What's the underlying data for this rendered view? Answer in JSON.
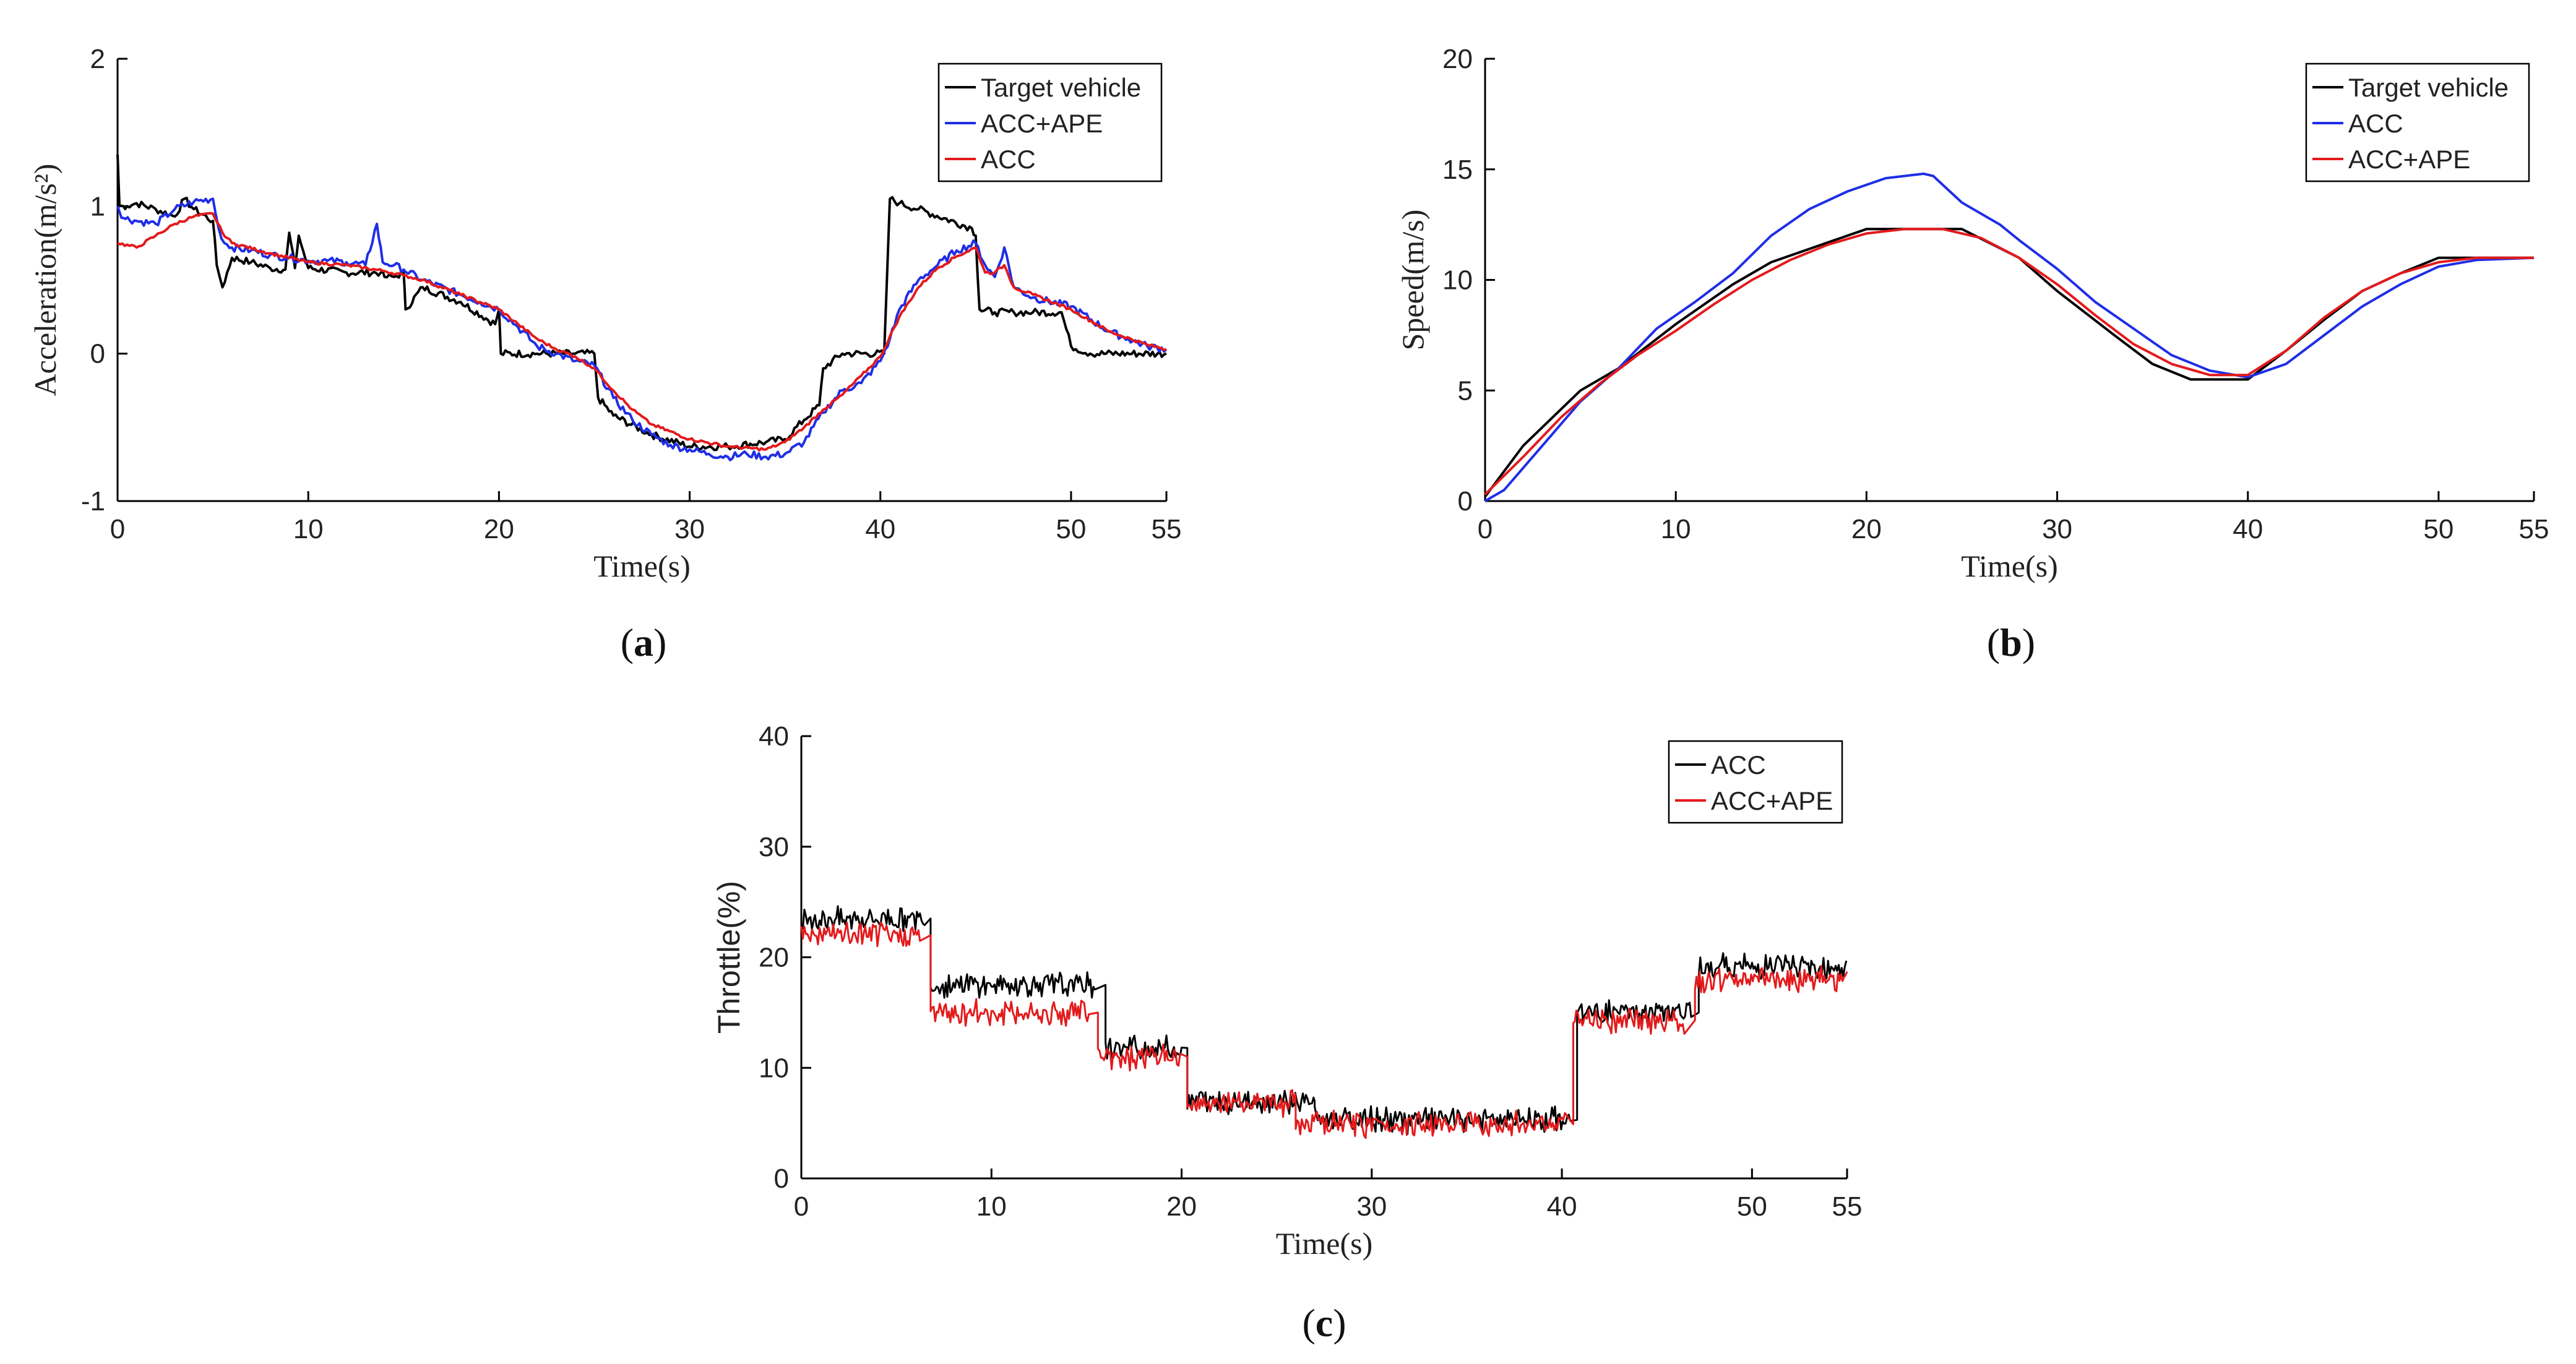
{
  "chart_data": [
    {
      "id": "a",
      "type": "line",
      "caption": "a",
      "xlabel": "Time(s)",
      "ylabel": "Acceleration(m/s²)",
      "xlim": [
        0,
        55
      ],
      "ylim": [
        -1,
        2
      ],
      "xticks": [
        0,
        10,
        20,
        30,
        40,
        50,
        55
      ],
      "yticks": [
        -1,
        0,
        1,
        2
      ],
      "legend": {
        "position": "top-right",
        "entries": [
          "Target vehicle",
          "ACC+APE",
          "ACC"
        ]
      },
      "series": [
        {
          "name": "Target vehicle",
          "color": "#000000",
          "x": [
            0,
            0.1,
            0.3,
            0.5,
            1,
            2,
            3,
            3.5,
            4,
            5,
            5.2,
            5.5,
            6,
            7,
            8,
            8.8,
            9,
            9.3,
            9.5,
            10,
            12,
            13.8,
            14,
            14.5,
            15,
            15.1,
            16,
            18,
            19.8,
            20,
            20.1,
            22,
            24,
            25,
            25.2,
            26,
            28,
            30,
            32,
            34,
            35,
            36,
            36.8,
            37,
            38,
            40.2,
            40.5,
            41,
            42,
            44.8,
            45,
            45.2,
            46,
            47,
            48,
            49.5,
            50,
            51,
            55
          ],
          "y": [
            1.35,
            1.0,
            1.0,
            1.0,
            1.02,
            0.98,
            0.93,
            1.05,
            0.98,
            0.9,
            0.6,
            0.45,
            0.65,
            0.62,
            0.58,
            0.57,
            0.82,
            0.58,
            0.8,
            0.58,
            0.55,
            0.55,
            0.52,
            0.52,
            0.55,
            0.3,
            0.45,
            0.35,
            0.2,
            0.3,
            0.0,
            0.0,
            0.0,
            0.0,
            -0.3,
            -0.42,
            -0.55,
            -0.63,
            -0.63,
            -0.6,
            -0.58,
            -0.45,
            -0.35,
            -0.1,
            0.0,
            0.0,
            1.05,
            1.02,
            0.98,
            0.85,
            0.8,
            0.3,
            0.28,
            0.28,
            0.28,
            0.28,
            0.05,
            0.0,
            0.0
          ]
        },
        {
          "name": "ACC+APE",
          "color": "#1f2ee6",
          "x": [
            0,
            0.3,
            1,
            2,
            3,
            4,
            5,
            5.3,
            5.6,
            6,
            7,
            8,
            9,
            10,
            11,
            12,
            13,
            13.6,
            13.9,
            14.5,
            15,
            16,
            18,
            19,
            20,
            21,
            22,
            23,
            24,
            25,
            26,
            27,
            28,
            29,
            30,
            31,
            32,
            33,
            34,
            35,
            36,
            37,
            38,
            39,
            40,
            40.5,
            41,
            42,
            43,
            44,
            45,
            45.5,
            46,
            46.5,
            47,
            48,
            50,
            52,
            53,
            54,
            55
          ],
          "y": [
            1.0,
            0.92,
            0.9,
            0.88,
            0.98,
            1.03,
            1.05,
            0.85,
            0.75,
            0.72,
            0.7,
            0.67,
            0.65,
            0.63,
            0.63,
            0.62,
            0.6,
            0.88,
            0.62,
            0.6,
            0.57,
            0.5,
            0.4,
            0.35,
            0.3,
            0.18,
            0.05,
            0.0,
            -0.05,
            -0.08,
            -0.3,
            -0.45,
            -0.55,
            -0.62,
            -0.65,
            -0.68,
            -0.7,
            -0.68,
            -0.7,
            -0.68,
            -0.6,
            -0.4,
            -0.25,
            -0.2,
            -0.05,
            0.1,
            0.3,
            0.5,
            0.6,
            0.7,
            0.75,
            0.6,
            0.52,
            0.72,
            0.45,
            0.38,
            0.32,
            0.15,
            0.1,
            0.05,
            0.03
          ]
        },
        {
          "name": "ACC",
          "color": "#e31a1c",
          "x": [
            0,
            1,
            2,
            3,
            4,
            5,
            5.5,
            6,
            8,
            10,
            12,
            14,
            15,
            16,
            18,
            20,
            21,
            22,
            23,
            24,
            25,
            26,
            27,
            28,
            30,
            32,
            34,
            35,
            36,
            37,
            38,
            39,
            40,
            41,
            42,
            43,
            44,
            45,
            45.5,
            46,
            46.5,
            47,
            48,
            50,
            52,
            54,
            55
          ],
          "y": [
            0.75,
            0.72,
            0.8,
            0.88,
            0.93,
            0.95,
            0.82,
            0.75,
            0.68,
            0.62,
            0.6,
            0.56,
            0.53,
            0.5,
            0.4,
            0.3,
            0.2,
            0.1,
            0.03,
            -0.02,
            -0.1,
            -0.25,
            -0.38,
            -0.48,
            -0.58,
            -0.63,
            -0.65,
            -0.6,
            -0.5,
            -0.38,
            -0.28,
            -0.15,
            -0.02,
            0.25,
            0.45,
            0.58,
            0.66,
            0.72,
            0.55,
            0.55,
            0.6,
            0.45,
            0.4,
            0.3,
            0.15,
            0.06,
            0.03
          ]
        }
      ]
    },
    {
      "id": "b",
      "type": "line",
      "caption": "b",
      "xlabel": "Time(s)",
      "ylabel": "Speed(m/s)",
      "xlim": [
        0,
        55
      ],
      "ylim": [
        0,
        20
      ],
      "xticks": [
        0,
        10,
        20,
        30,
        40,
        50,
        55
      ],
      "yticks": [
        0,
        5,
        10,
        15,
        20
      ],
      "legend": {
        "position": "top-right",
        "entries": [
          "Target vehicle",
          "ACC",
          "ACC+APE"
        ]
      },
      "series": [
        {
          "name": "Target vehicle",
          "color": "#000000",
          "x": [
            0,
            2,
            5,
            7,
            10,
            13,
            15,
            18,
            20,
            22,
            25,
            28,
            30,
            33,
            35,
            37,
            38,
            40,
            42,
            44,
            46,
            48,
            50,
            52,
            55
          ],
          "y": [
            0.2,
            2.5,
            5.0,
            6.0,
            8.0,
            9.8,
            10.8,
            11.7,
            12.3,
            12.3,
            12.3,
            11.0,
            9.5,
            7.5,
            6.2,
            5.5,
            5.5,
            5.5,
            6.8,
            8.2,
            9.5,
            10.3,
            11.0,
            11.0,
            11.0
          ]
        },
        {
          "name": "ACC",
          "color": "#1f2ee6",
          "x": [
            0,
            1,
            3,
            5,
            7,
            9,
            11,
            13,
            15,
            17,
            19,
            21,
            23,
            23.5,
            25,
            27,
            28,
            30,
            32,
            34,
            36,
            38,
            40,
            42,
            44,
            46,
            48,
            50,
            52,
            55
          ],
          "y": [
            0.0,
            0.5,
            2.5,
            4.5,
            6.0,
            7.8,
            9.0,
            10.3,
            12.0,
            13.2,
            14.0,
            14.6,
            14.8,
            14.7,
            13.5,
            12.5,
            11.8,
            10.5,
            9.0,
            7.8,
            6.6,
            5.9,
            5.6,
            6.2,
            7.5,
            8.8,
            9.8,
            10.6,
            10.9,
            11.0
          ]
        },
        {
          "name": "ACC+APE",
          "color": "#e31a1c",
          "x": [
            0,
            2,
            4,
            6,
            8,
            10,
            12,
            14,
            16,
            18,
            20,
            22,
            24,
            26,
            28,
            30,
            32,
            34,
            36,
            38,
            40,
            42,
            44,
            46,
            48,
            50,
            52,
            55
          ],
          "y": [
            0.3,
            2.0,
            3.8,
            5.3,
            6.6,
            7.7,
            8.9,
            10.0,
            10.9,
            11.6,
            12.1,
            12.3,
            12.3,
            11.9,
            11.0,
            9.8,
            8.4,
            7.1,
            6.2,
            5.7,
            5.7,
            6.8,
            8.3,
            9.5,
            10.3,
            10.8,
            11.0,
            11.0
          ]
        }
      ]
    },
    {
      "id": "c",
      "type": "line",
      "caption": "c",
      "xlabel": "Time(s)",
      "ylabel": "Throttle(%)",
      "xlim": [
        0,
        55
      ],
      "ylim": [
        0,
        40
      ],
      "xticks": [
        0,
        10,
        20,
        30,
        40,
        50,
        55
      ],
      "yticks": [
        0,
        10,
        20,
        30,
        40
      ],
      "legend": {
        "position": "top-right",
        "entries": [
          "ACC",
          "ACC+APE"
        ]
      },
      "series": [
        {
          "name": "ACC",
          "color": "#000000",
          "segments": [
            [
              0,
              6.5,
              23.5
            ],
            [
              6.8,
              15.5,
              17.5
            ],
            [
              16,
              20,
              11.8
            ],
            [
              20.3,
              27,
              7.0
            ],
            [
              27,
              40.5,
              5.3
            ],
            [
              40.8,
              46.8,
              15.0
            ],
            [
              47.2,
              55,
              19.2
            ]
          ]
        },
        {
          "name": "ACC+APE",
          "color": "#e31a1c",
          "segments": [
            [
              0,
              6.3,
              22.0
            ],
            [
              6.8,
              15.2,
              15.0
            ],
            [
              15.6,
              20,
              11.0
            ],
            [
              20.3,
              26,
              6.8
            ],
            [
              26,
              40.2,
              4.9
            ],
            [
              40.6,
              46.5,
              14.3
            ],
            [
              47,
              55,
              18.0
            ]
          ]
        }
      ]
    }
  ],
  "captions": {
    "a": "(a)",
    "b": "(b)",
    "c": "(c)"
  },
  "legend_labels": {
    "a": [
      "Target vehicle",
      "ACC+APE",
      "ACC"
    ],
    "b": [
      "Target vehicle",
      "ACC",
      "ACC+APE"
    ],
    "c": [
      "ACC",
      "ACC+APE"
    ]
  }
}
